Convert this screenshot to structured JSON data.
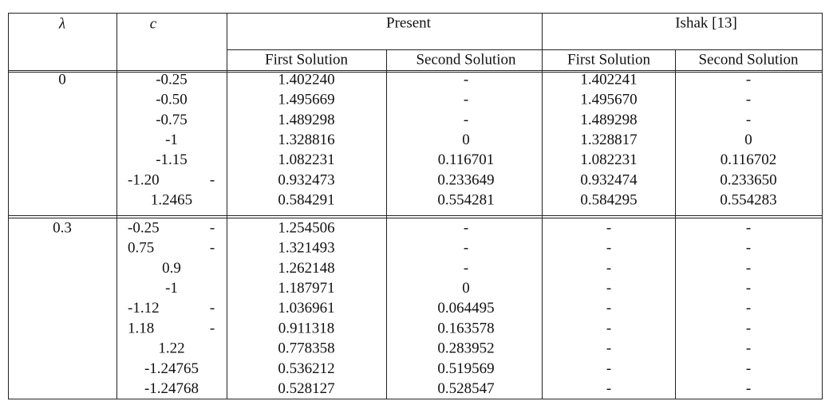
{
  "header": {
    "lambda": "λ",
    "c": "c",
    "present": "Present",
    "ishak": "Ishak [13]",
    "subheaders": [
      "First Solution",
      "Second Solution",
      "First Solution",
      "Second Solution"
    ]
  },
  "groups": [
    {
      "lambda": "0",
      "rows": [
        {
          "c": "-0.25",
          "values": [
            "1.402240",
            "-",
            "1.402241",
            "-"
          ]
        },
        {
          "c": "-0.50",
          "values": [
            "1.495669",
            "-",
            "1.495670",
            "-"
          ]
        },
        {
          "c": "-0.75",
          "values": [
            "1.489298",
            "-",
            "1.489298",
            "-"
          ]
        },
        {
          "c": "-1",
          "values": [
            "1.328816",
            "0",
            "1.328817",
            "0"
          ]
        },
        {
          "c": "-1.15",
          "values": [
            "1.082231",
            "0.116701",
            "1.082231",
            "0.116702"
          ]
        },
        {
          "c": "-1.20",
          "c_suffix": "-",
          "values": [
            "0.932473",
            "0.233649",
            "0.932474",
            "0.233650"
          ]
        },
        {
          "c": "1.2465",
          "values": [
            "0.584291",
            "0.554281",
            "0.584295",
            "0.554283"
          ]
        }
      ]
    },
    {
      "lambda": "0.3",
      "rows": [
        {
          "c": "-0.25",
          "c_suffix": "-",
          "values": [
            "1.254506",
            "-",
            "-",
            "-"
          ]
        },
        {
          "c": "0.75",
          "c_suffix": "-",
          "values": [
            "1.321493",
            "-",
            "-",
            "-"
          ]
        },
        {
          "c": "0.9",
          "values": [
            "1.262148",
            "-",
            "-",
            "-"
          ]
        },
        {
          "c": "-1",
          "values": [
            "1.187971",
            "0",
            "-",
            "-"
          ]
        },
        {
          "c": "-1.12",
          "c_suffix": "-",
          "values": [
            "1.036961",
            "0.064495",
            "-",
            "-"
          ]
        },
        {
          "c": "1.18",
          "c_suffix": "-",
          "values": [
            "0.911318",
            "0.163578",
            "-",
            "-"
          ]
        },
        {
          "c": "1.22",
          "values": [
            "0.778358",
            "0.283952",
            "-",
            "-"
          ]
        },
        {
          "c": "-1.24765",
          "values": [
            "0.536212",
            "0.519569",
            "-",
            "-"
          ]
        },
        {
          "c": "-1.24768",
          "values": [
            "0.528127",
            "0.528547",
            "-",
            "-"
          ]
        }
      ]
    }
  ]
}
